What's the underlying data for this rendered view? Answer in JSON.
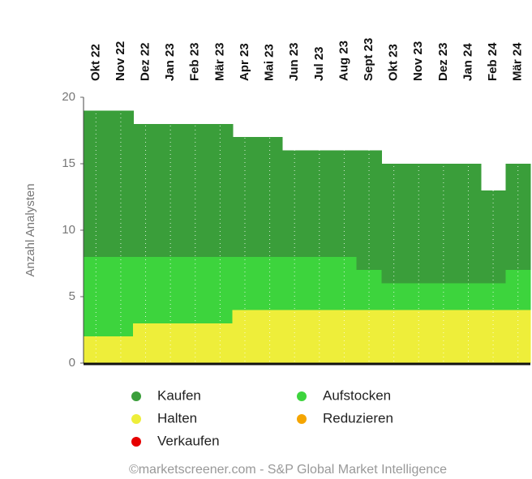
{
  "chart_data": {
    "type": "stepped_stacked_area",
    "y_label": "Anzahl Analysten",
    "footer": "©marketscreener.com - S&P Global Market Intelligence",
    "categories": [
      "Okt 22",
      "Nov 22",
      "Dez 22",
      "Jan 23",
      "Feb 23",
      "Mär 23",
      "Apr 23",
      "Mai 23",
      "Jun 23",
      "Jul 23",
      "Aug 23",
      "Sept 23",
      "Okt 23",
      "Nov 23",
      "Dez 23",
      "Jan 24",
      "Feb 24",
      "Mär 24"
    ],
    "series": [
      {
        "name": "Halten",
        "color": "#eeee3a",
        "values": [
          2,
          2,
          3,
          3,
          3,
          3,
          4,
          4,
          4,
          4,
          4,
          4,
          4,
          4,
          4,
          4,
          4,
          4
        ]
      },
      {
        "name": "Aufstocken",
        "color": "#3dd43d",
        "values": [
          6,
          6,
          5,
          5,
          5,
          5,
          4,
          4,
          4,
          4,
          4,
          3,
          2,
          2,
          2,
          2,
          2,
          3
        ]
      },
      {
        "name": "Kaufen",
        "color": "#3a9e3a",
        "values": [
          11,
          11,
          10,
          10,
          10,
          10,
          9,
          9,
          8,
          8,
          8,
          9,
          9,
          9,
          9,
          9,
          7,
          8
        ]
      },
      {
        "name": "Reduzieren",
        "color": "#f5a500",
        "values": [
          0,
          0,
          0,
          0,
          0,
          0,
          0,
          0,
          0,
          0,
          0,
          0,
          0,
          0,
          0,
          0,
          0,
          0
        ]
      },
      {
        "name": "Verkaufen",
        "color": "#e60000",
        "values": [
          0,
          0,
          0,
          0,
          0,
          0,
          0,
          0,
          0,
          0,
          0,
          0,
          0,
          0,
          0,
          0,
          0,
          0
        ]
      }
    ],
    "legend_order": [
      2,
      1,
      0,
      3,
      4
    ],
    "ylim": [
      0,
      20
    ],
    "yticks": [
      0,
      5,
      10,
      15,
      20
    ],
    "grid": true
  }
}
